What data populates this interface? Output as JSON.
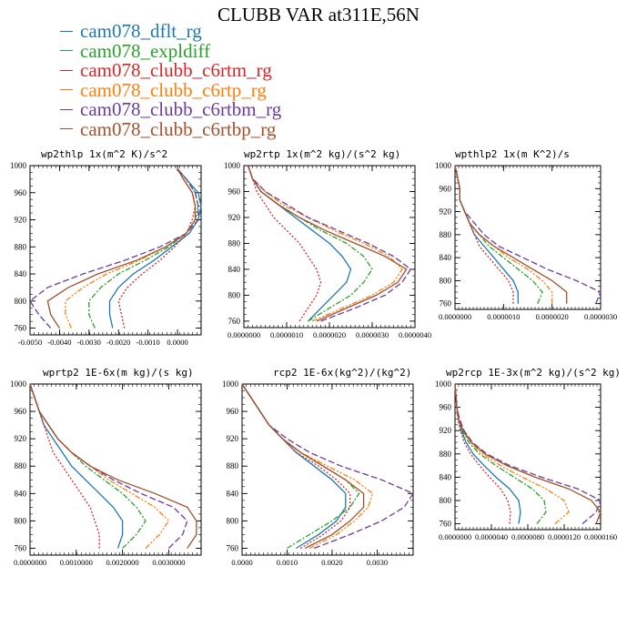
{
  "figure": {
    "title": "CLUBB VAR at311E,56N"
  },
  "legend": [
    {
      "label": "cam078_dflt_rg",
      "color": "#1f77b4",
      "dash": ""
    },
    {
      "label": "cam078_expldiff",
      "color": "#2ca02c",
      "dash": "6,2,2,2"
    },
    {
      "label": "cam078_clubb_c6rtm_rg",
      "color": "#d62728",
      "dash": "2,2"
    },
    {
      "label": "cam078_clubb_c6rtp_rg",
      "color": "#ff7f0e",
      "dash": "6,2,2,2,2,2"
    },
    {
      "label": "cam078_clubb_c6rtbm_rg",
      "color": "#6a3d9a",
      "dash": "7,3"
    },
    {
      "label": "cam078_clubb_c6rtbp_rg",
      "color": "#a0522d",
      "dash": ""
    }
  ],
  "chart_data": [
    {
      "type": "line",
      "title": "wp2thlp   1x(m^2 K)/s^2",
      "ylim": [
        1000,
        750
      ],
      "xlim": [
        -0.005,
        0.0008
      ],
      "yticks": [
        "760",
        "800",
        "840",
        "880",
        "920",
        "960",
        "1000"
      ],
      "ytick_values": [
        760,
        800,
        840,
        880,
        920,
        960,
        1000
      ],
      "xticks": [
        "-0.0050",
        "-0.0040",
        "-0.0030",
        "-0.0020",
        "-0.0010",
        "0.0000"
      ],
      "xtick_values": [
        -0.005,
        -0.004,
        -0.003,
        -0.002,
        -0.001,
        0
      ],
      "y": [
        760,
        780,
        800,
        820,
        840,
        860,
        880,
        900,
        920,
        940,
        960,
        980,
        995
      ],
      "series": [
        {
          "name": "cam078_dflt_rg",
          "values": [
            -0.0022,
            -0.0023,
            -0.0023,
            -0.002,
            -0.0015,
            -0.0008,
            -0.0002,
            0.0004,
            0.0007,
            0.0008,
            0.0007,
            0.0003,
            0.0
          ]
        },
        {
          "name": "cam078_expldiff",
          "values": [
            -0.0028,
            -0.003,
            -0.003,
            -0.0026,
            -0.002,
            -0.0011,
            -0.0003,
            0.0003,
            0.0006,
            0.0007,
            0.0006,
            0.0003,
            0.0
          ]
        },
        {
          "name": "cam078_clubb_c6rtm_rg",
          "values": [
            -0.0018,
            -0.0019,
            -0.002,
            -0.0017,
            -0.0012,
            -0.0006,
            -0.0001,
            0.0003,
            0.0005,
            0.0006,
            0.0005,
            0.0002,
            0.0
          ]
        },
        {
          "name": "cam078_clubb_c6rtp_rg",
          "values": [
            -0.0036,
            -0.0038,
            -0.0038,
            -0.0032,
            -0.0024,
            -0.0013,
            -0.0004,
            0.0003,
            0.0006,
            0.0006,
            0.0005,
            0.0002,
            0.0
          ]
        },
        {
          "name": "cam078_clubb_c6rtbm_rg",
          "values": [
            -0.0043,
            -0.0047,
            -0.005,
            -0.0044,
            -0.0032,
            -0.0018,
            -0.0006,
            0.0003,
            0.0007,
            0.0007,
            0.0006,
            0.0003,
            0.0
          ]
        },
        {
          "name": "cam078_clubb_c6rtbp_rg",
          "values": [
            -0.004,
            -0.0043,
            -0.0044,
            -0.0037,
            -0.0027,
            -0.0014,
            -0.0004,
            0.0003,
            0.0006,
            0.0006,
            0.0005,
            0.0002,
            0.0
          ]
        }
      ]
    },
    {
      "type": "line",
      "title": "wp2rtp   1x(m^2 kg)/(s^2 kg)",
      "ylim": [
        1000,
        750
      ],
      "xlim": [
        0,
        4e-06
      ],
      "yticks": [
        "760",
        "800",
        "840",
        "880",
        "920",
        "960",
        "1000"
      ],
      "ytick_values": [
        760,
        800,
        840,
        880,
        920,
        960,
        1000
      ],
      "xticks": [
        "0.0000000",
        "0.0000010",
        "0.0000020",
        "0.0000030",
        "0.0000040"
      ],
      "xtick_values": [
        0,
        1e-06,
        2e-06,
        3e-06,
        4e-06
      ],
      "y": [
        760,
        780,
        800,
        820,
        840,
        860,
        880,
        900,
        920,
        940,
        960,
        980,
        1000
      ],
      "series": [
        {
          "name": "cam078_dflt_rg",
          "values": [
            1.5e-06,
            1.8e-06,
            2.1e-06,
            2.4e-06,
            2.5e-06,
            2.3e-06,
            2e-06,
            1.6e-06,
            1.2e-06,
            8e-07,
            4e-07,
            2e-07,
            1e-07
          ]
        },
        {
          "name": "cam078_expldiff",
          "values": [
            1.5e-06,
            2e-06,
            2.5e-06,
            2.8e-06,
            3e-06,
            2.8e-06,
            2.4e-06,
            1.8e-06,
            1.3e-06,
            8e-07,
            4e-07,
            2e-07,
            1e-07
          ]
        },
        {
          "name": "cam078_clubb_c6rtm_rg",
          "values": [
            1.3e-06,
            1.5e-06,
            1.7e-06,
            1.8e-06,
            1.7e-06,
            1.5e-06,
            1.3e-06,
            1e-06,
            7e-07,
            5e-07,
            3e-07,
            2e-07,
            1e-07
          ]
        },
        {
          "name": "cam078_clubb_c6rtp_rg",
          "values": [
            1.6e-06,
            2.3e-06,
            3e-06,
            3.5e-06,
            3.7e-06,
            3.4e-06,
            2.8e-06,
            2.1e-06,
            1.5e-06,
            9e-07,
            5e-07,
            2e-07,
            1e-07
          ]
        },
        {
          "name": "cam078_clubb_c6rtbm_rg",
          "values": [
            1.8e-06,
            2.6e-06,
            3.3e-06,
            3.7e-06,
            3.9e-06,
            3.5e-06,
            2.9e-06,
            2.2e-06,
            1.5e-06,
            1e-06,
            5e-07,
            2e-07,
            1e-07
          ]
        },
        {
          "name": "cam078_clubb_c6rtbp_rg",
          "values": [
            1.7e-06,
            2.4e-06,
            3.1e-06,
            3.6e-06,
            3.8e-06,
            3.3e-06,
            2.6e-06,
            1.9e-06,
            1.3e-06,
            8e-07,
            4e-07,
            2e-07,
            1e-07
          ]
        }
      ]
    },
    {
      "type": "line",
      "title": "wpthlp2   1x(m K^2)/s",
      "ylim": [
        1000,
        750
      ],
      "xlim": [
        0,
        3e-06
      ],
      "yticks": [
        "760",
        "800",
        "840",
        "880",
        "920",
        "960",
        "1000"
      ],
      "ytick_values": [
        760,
        800,
        840,
        880,
        920,
        960,
        1000
      ],
      "xticks": [
        "0.0000000",
        "0.0000010",
        "0.0000020",
        "0.0000030"
      ],
      "xtick_values": [
        0,
        1e-06,
        2e-06,
        3e-06
      ],
      "y": [
        760,
        780,
        800,
        820,
        840,
        860,
        880,
        900,
        920,
        940,
        960,
        980,
        1000
      ],
      "series": [
        {
          "name": "cam078_dflt_rg",
          "values": [
            1.3e-06,
            1.3e-06,
            1.2e-06,
            1e-06,
            8e-07,
            6e-07,
            4e-07,
            3e-07,
            2e-07,
            1e-07,
            1e-07,
            5e-08,
            0.0
          ]
        },
        {
          "name": "cam078_expldiff",
          "values": [
            1.7e-06,
            1.8e-06,
            1.6e-06,
            1.3e-06,
            1e-06,
            7e-07,
            5e-07,
            3e-07,
            2e-07,
            1e-07,
            1e-07,
            5e-08,
            0.0
          ]
        },
        {
          "name": "cam078_clubb_c6rtm_rg",
          "values": [
            1.2e-06,
            1.2e-06,
            1.1e-06,
            9e-07,
            7e-07,
            5e-07,
            4e-07,
            3e-07,
            2e-07,
            1e-07,
            1e-07,
            5e-08,
            0.0
          ]
        },
        {
          "name": "cam078_clubb_c6rtp_rg",
          "values": [
            2e-06,
            2e-06,
            1.8e-06,
            1.5e-06,
            1.1e-06,
            8e-07,
            5e-07,
            3e-07,
            2e-07,
            1e-07,
            1e-07,
            5e-08,
            0.0
          ]
        },
        {
          "name": "cam078_clubb_c6rtbm_rg",
          "values": [
            2.9e-06,
            3e-06,
            2.5e-06,
            1.9e-06,
            1.4e-06,
            9e-07,
            6e-07,
            4e-07,
            2e-07,
            1e-07,
            1e-07,
            5e-08,
            0.0
          ]
        },
        {
          "name": "cam078_clubb_c6rtbp_rg",
          "values": [
            2.3e-06,
            2.3e-06,
            2e-06,
            1.6e-06,
            1.2e-06,
            8e-07,
            5e-07,
            3e-07,
            2e-07,
            1e-07,
            1e-07,
            5e-08,
            0.0
          ]
        }
      ]
    },
    {
      "type": "line",
      "title": "wprtp2   1E-6x(m kg)/(s kg)",
      "ylim": [
        1000,
        750
      ],
      "xlim": [
        0,
        0.0037
      ],
      "yticks": [
        "760",
        "800",
        "840",
        "880",
        "920",
        "960",
        "1000"
      ],
      "ytick_values": [
        760,
        800,
        840,
        880,
        920,
        960,
        1000
      ],
      "xticks": [
        "0.0000000",
        "0.0010000",
        "0.0020000",
        "0.0030000"
      ],
      "xtick_values": [
        0,
        0.001,
        0.002,
        0.003
      ],
      "y": [
        760,
        780,
        800,
        820,
        840,
        860,
        880,
        900,
        920,
        940,
        960,
        980,
        1000
      ],
      "series": [
        {
          "name": "cam078_dflt_rg",
          "values": [
            0.0019,
            0.002,
            0.002,
            0.0018,
            0.0015,
            0.0012,
            0.0009,
            0.0007,
            0.0005,
            0.0003,
            0.0002,
            0.0001,
            0.0
          ]
        },
        {
          "name": "cam078_expldiff",
          "values": [
            0.002,
            0.0023,
            0.0025,
            0.0023,
            0.002,
            0.0016,
            0.0012,
            0.0009,
            0.0006,
            0.0004,
            0.0002,
            0.0001,
            0.0
          ]
        },
        {
          "name": "cam078_clubb_c6rtm_rg",
          "values": [
            0.0015,
            0.0015,
            0.0014,
            0.0013,
            0.0011,
            0.0009,
            0.0007,
            0.0005,
            0.0004,
            0.0003,
            0.0002,
            0.0001,
            0.0
          ]
        },
        {
          "name": "cam078_clubb_c6rtp_rg",
          "values": [
            0.0025,
            0.0028,
            0.003,
            0.0027,
            0.0022,
            0.0017,
            0.0013,
            0.0009,
            0.0006,
            0.0004,
            0.0002,
            0.0001,
            0.0
          ]
        },
        {
          "name": "cam078_clubb_c6rtbm_rg",
          "values": [
            0.003,
            0.0033,
            0.0034,
            0.0031,
            0.0024,
            0.0018,
            0.0013,
            0.0009,
            0.0006,
            0.0004,
            0.0002,
            0.0001,
            0.0
          ]
        },
        {
          "name": "cam078_clubb_c6rtbp_rg",
          "values": [
            0.0034,
            0.0036,
            0.0036,
            0.0034,
            0.0027,
            0.0019,
            0.0013,
            0.0009,
            0.0006,
            0.0004,
            0.0002,
            0.0001,
            0.0
          ]
        }
      ]
    },
    {
      "type": "line",
      "title": "rcp2   1E-6x(kg^2)/(kg^2)",
      "ylim": [
        1000,
        750
      ],
      "xlim": [
        0,
        0.0038
      ],
      "yticks": [
        "760",
        "800",
        "840",
        "880",
        "920",
        "960",
        "1000"
      ],
      "ytick_values": [
        760,
        800,
        840,
        880,
        920,
        960,
        1000
      ],
      "xticks": [
        "0.0000",
        "0.0010",
        "0.0020",
        "0.0030"
      ],
      "xtick_values": [
        0,
        0.001,
        0.002,
        0.003
      ],
      "y": [
        760,
        780,
        800,
        820,
        840,
        860,
        880,
        900,
        920,
        940,
        960,
        980,
        1000
      ],
      "series": [
        {
          "name": "cam078_dflt_rg",
          "values": [
            0.0012,
            0.0017,
            0.0021,
            0.0023,
            0.0023,
            0.002,
            0.0016,
            0.0012,
            0.0009,
            0.0006,
            0.0004,
            0.0002,
            0.0
          ]
        },
        {
          "name": "cam078_expldiff",
          "values": [
            0.001,
            0.0015,
            0.002,
            0.0024,
            0.0026,
            0.0023,
            0.0018,
            0.0013,
            0.0009,
            0.0006,
            0.0004,
            0.0002,
            0.0
          ]
        },
        {
          "name": "cam078_clubb_c6rtm_rg",
          "values": [
            0.0013,
            0.0018,
            0.0022,
            0.0024,
            0.0024,
            0.0021,
            0.0017,
            0.0012,
            0.0009,
            0.0006,
            0.0004,
            0.0002,
            0.0
          ]
        },
        {
          "name": "cam078_clubb_c6rtp_rg",
          "values": [
            0.0015,
            0.0021,
            0.0025,
            0.0028,
            0.0029,
            0.0025,
            0.0019,
            0.0013,
            0.0009,
            0.0006,
            0.0004,
            0.0002,
            0.0
          ]
        },
        {
          "name": "cam078_clubb_c6rtbm_rg",
          "values": [
            0.0016,
            0.0024,
            0.0031,
            0.0036,
            0.0038,
            0.0031,
            0.0022,
            0.0015,
            0.001,
            0.0006,
            0.0004,
            0.0002,
            0.0
          ]
        },
        {
          "name": "cam078_clubb_c6rtbp_rg",
          "values": [
            0.0014,
            0.002,
            0.0024,
            0.0027,
            0.0027,
            0.0023,
            0.0018,
            0.0013,
            0.0009,
            0.0006,
            0.0004,
            0.0002,
            0.0
          ]
        }
      ]
    },
    {
      "type": "line",
      "title": "wp2rcp   1E-3x(m^2 kg)/(s^2 kg)",
      "ylim": [
        1000,
        750
      ],
      "xlim": [
        0,
        1.6e-05
      ],
      "yticks": [
        "760",
        "800",
        "840",
        "880",
        "920",
        "960",
        "1000"
      ],
      "ytick_values": [
        760,
        800,
        840,
        880,
        920,
        960,
        1000
      ],
      "xticks": [
        "0.0000000",
        "0.0000040",
        "0.0000080",
        "0.0000120",
        "0.0000160"
      ],
      "xtick_values": [
        0,
        4e-06,
        8e-06,
        1.2e-05,
        1.6e-05
      ],
      "y": [
        760,
        780,
        800,
        820,
        840,
        860,
        880,
        900,
        920,
        940,
        960,
        980,
        1000
      ],
      "series": [
        {
          "name": "cam078_dflt_rg",
          "values": [
            7e-06,
            7.2e-06,
            7e-06,
            6e-06,
            4.5e-06,
            3.2e-06,
            2e-06,
            1.2e-06,
            7e-07,
            4e-07,
            2e-07,
            1e-07,
            0.0
          ]
        },
        {
          "name": "cam078_expldiff",
          "values": [
            9e-06,
            1e-05,
            9.8e-06,
            8.5e-06,
            6.5e-06,
            4.5e-06,
            2.7e-06,
            1.5e-06,
            8e-07,
            4e-07,
            2e-07,
            1e-07,
            0.0
          ]
        },
        {
          "name": "cam078_clubb_c6rtm_rg",
          "values": [
            6e-06,
            6.1e-06,
            5.8e-06,
            5e-06,
            3.8e-06,
            2.7e-06,
            1.7e-06,
            1e-06,
            6e-07,
            3e-07,
            2e-07,
            1e-07,
            0.0
          ]
        },
        {
          "name": "cam078_clubb_c6rtp_rg",
          "values": [
            1.1e-05,
            1.25e-05,
            1.2e-05,
            1e-05,
            7.4e-06,
            5e-06,
            3e-06,
            1.7e-06,
            9e-07,
            4e-07,
            2e-07,
            1e-07,
            0.0
          ]
        },
        {
          "name": "cam078_clubb_c6rtbm_rg",
          "values": [
            1.4e-05,
            1.55e-05,
            1.6e-05,
            1.35e-05,
            9.5e-06,
            6e-06,
            3.5e-06,
            1.9e-06,
            1e-06,
            5e-07,
            2e-07,
            1e-07,
            0.0
          ]
        },
        {
          "name": "cam078_clubb_c6rtbp_rg",
          "values": [
            1.55e-05,
            1.6e-05,
            1.5e-05,
            1.25e-05,
            8.8e-06,
            5.7e-06,
            3.3e-06,
            1.8e-06,
            9e-07,
            4e-07,
            2e-07,
            1e-07,
            0.0
          ]
        }
      ]
    }
  ]
}
